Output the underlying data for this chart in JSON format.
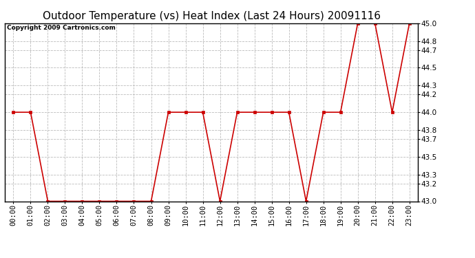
{
  "title": "Outdoor Temperature (vs) Heat Index (Last 24 Hours) 20091116",
  "copyright_text": "Copyright 2009 Cartronics.com",
  "x_labels": [
    "00:00",
    "01:00",
    "02:00",
    "03:00",
    "04:00",
    "05:00",
    "06:00",
    "07:00",
    "08:00",
    "09:00",
    "10:00",
    "11:00",
    "12:00",
    "13:00",
    "14:00",
    "15:00",
    "16:00",
    "17:00",
    "18:00",
    "19:00",
    "20:00",
    "21:00",
    "22:00",
    "23:00"
  ],
  "y_values": [
    44.0,
    44.0,
    43.0,
    43.0,
    43.0,
    43.0,
    43.0,
    43.0,
    43.0,
    44.0,
    44.0,
    44.0,
    43.0,
    44.0,
    44.0,
    44.0,
    44.0,
    43.0,
    44.0,
    44.0,
    45.0,
    45.0,
    44.0,
    45.0
  ],
  "line_color": "#cc0000",
  "marker": "s",
  "marker_size": 2.5,
  "marker_color": "#cc0000",
  "ylim_min": 43.0,
  "ylim_max": 45.0,
  "yticks": [
    43.0,
    43.2,
    43.3,
    43.5,
    43.7,
    43.8,
    44.0,
    44.2,
    44.3,
    44.5,
    44.7,
    44.8,
    45.0
  ],
  "background_color": "#ffffff",
  "plot_bg_color": "#ffffff",
  "grid_color": "#bbbbbb",
  "grid_linestyle": "--",
  "title_fontsize": 11,
  "copyright_fontsize": 6.5,
  "tick_labelsize": 7.5
}
